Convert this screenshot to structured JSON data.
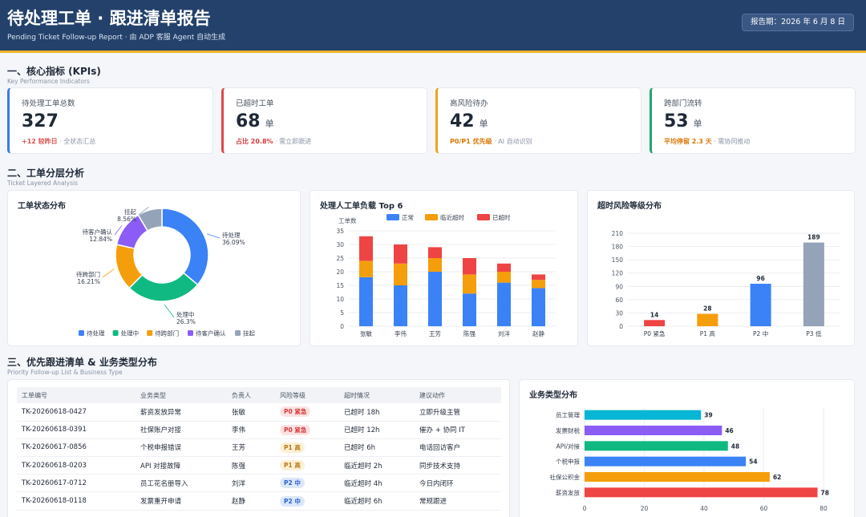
{
  "header": {
    "title": "待处理工单 · 跟进清单报告",
    "subtitle": "Pending Ticket Follow-up Report · 由 ADP 客服 Agent 自动生成",
    "date_badge": "报告期：2026 年 6 月 8 日"
  },
  "sections": {
    "kpi": {
      "title": "一、核心指标 (KPIs)",
      "subtitle": "Key Performance Indicators"
    },
    "layer": {
      "title": "二、工单分层分析",
      "subtitle": "Ticket Layered Analysis"
    },
    "priority": {
      "title": "三、优先跟进清单 & 业务类型分布",
      "subtitle": "Priority Follow-up List & Business Type"
    }
  },
  "kpis": [
    {
      "label": "待处理工单总数",
      "value": "327",
      "unit": "",
      "note_strong": "+12 较昨日",
      "note_rest": " · 全状态汇总",
      "accent": "#3b7ddd",
      "note_color": "#d9534f"
    },
    {
      "label": "已超时工单",
      "value": "68",
      "unit": "单",
      "note_strong": "占比 20.8%",
      "note_rest": " · 需立即跟进",
      "accent": "#e04848",
      "note_color": "#d63a3a"
    },
    {
      "label": "高风险待办",
      "value": "42",
      "unit": "单",
      "note_strong": "P0/P1 优先级",
      "note_rest": " · AI 自动识别",
      "accent": "#f0a31a",
      "note_color": "#d97706"
    },
    {
      "label": "跨部门流转",
      "value": "53",
      "unit": "单",
      "note_strong": "平均停留 2.3 天",
      "note_rest": " · 需协同推动",
      "accent": "#1fa870",
      "note_color": "#d97706"
    }
  ],
  "donut": {
    "title": "工单状态分布",
    "slices": [
      {
        "name": "待处理",
        "pct": "36.09%",
        "value": 36.09,
        "color": "#3b82f6"
      },
      {
        "name": "处理中",
        "pct": "26.3%",
        "value": 26.3,
        "color": "#10b981"
      },
      {
        "name": "待跨部门",
        "pct": "16.21%",
        "value": 16.21,
        "color": "#f59e0b"
      },
      {
        "name": "待客户确认",
        "pct": "12.84%",
        "value": 12.84,
        "color": "#8b5cf6"
      },
      {
        "name": "挂起",
        "pct": "8.56%",
        "value": 8.56,
        "color": "#94a3b8"
      }
    ]
  },
  "chart_data": [
    {
      "type": "bar",
      "title": "处理人工单负载 Top 6",
      "ylabel": "工单数",
      "categories": [
        "张敏",
        "李伟",
        "王芳",
        "陈强",
        "刘洋",
        "赵静"
      ],
      "ylim": [
        0,
        35
      ],
      "yticks": [
        0,
        5,
        10,
        15,
        20,
        25,
        30,
        35
      ],
      "stacked": true,
      "legend": "top",
      "series": [
        {
          "name": "正常",
          "color": "#3b82f6",
          "values": [
            18,
            15,
            20,
            12,
            16,
            14
          ]
        },
        {
          "name": "临近超时",
          "color": "#f59e0b",
          "values": [
            6,
            8,
            5,
            7,
            4,
            3
          ]
        },
        {
          "name": "已超时",
          "color": "#ef4444",
          "values": [
            9,
            7,
            4,
            6,
            3,
            2
          ]
        }
      ]
    },
    {
      "type": "bar",
      "title": "超时风险等级分布",
      "categories": [
        "P0 紧急",
        "P1 高",
        "P2 中",
        "P3 低"
      ],
      "values": [
        14,
        28,
        96,
        189
      ],
      "colors": [
        "#ef4444",
        "#f59e0b",
        "#3b82f6",
        "#94a3b8"
      ],
      "ylim": [
        0,
        210
      ],
      "yticks": [
        0,
        30,
        60,
        90,
        120,
        150,
        180,
        210
      ]
    },
    {
      "type": "bar",
      "orientation": "horizontal",
      "title": "业务类型分布",
      "categories": [
        "员工管理",
        "发票财税",
        "API/对接",
        "个税申报",
        "社保公积金",
        "薪资发放"
      ],
      "values": [
        39,
        46,
        48,
        54,
        62,
        78
      ],
      "colors": [
        "#06b6d4",
        "#8b5cf6",
        "#10b981",
        "#3b82f6",
        "#f59e0b",
        "#ef4444"
      ],
      "xlim": [
        0,
        80
      ],
      "xticks": [
        0,
        20,
        40,
        60,
        80
      ]
    }
  ],
  "table": {
    "headers": [
      "工单编号",
      "业务类型",
      "负责人",
      "风险等级",
      "超时情况",
      "建议动作"
    ],
    "rows": [
      [
        "TK-20260618-0427",
        "薪资发放异常",
        "张敏",
        "P0 紧急",
        "已超时 18h",
        "立即升级主管"
      ],
      [
        "TK-20260618-0391",
        "社保账户对接",
        "李伟",
        "P0 紧急",
        "已超时 12h",
        "催办 + 协同 IT"
      ],
      [
        "TK-20260617-0856",
        "个税申报错误",
        "王芳",
        "P1 高",
        "已超时 6h",
        "电话回访客户"
      ],
      [
        "TK-20260618-0203",
        "API 对接故障",
        "陈强",
        "P1 高",
        "临近超时 2h",
        "同步技术支持"
      ],
      [
        "TK-20260617-0712",
        "员工花名册导入",
        "刘洋",
        "P2 中",
        "临近超时 4h",
        "今日内闭环"
      ],
      [
        "TK-20260618-0118",
        "发票重开申请",
        "赵静",
        "P2 中",
        "临近超时 6h",
        "常规跟进"
      ]
    ]
  }
}
